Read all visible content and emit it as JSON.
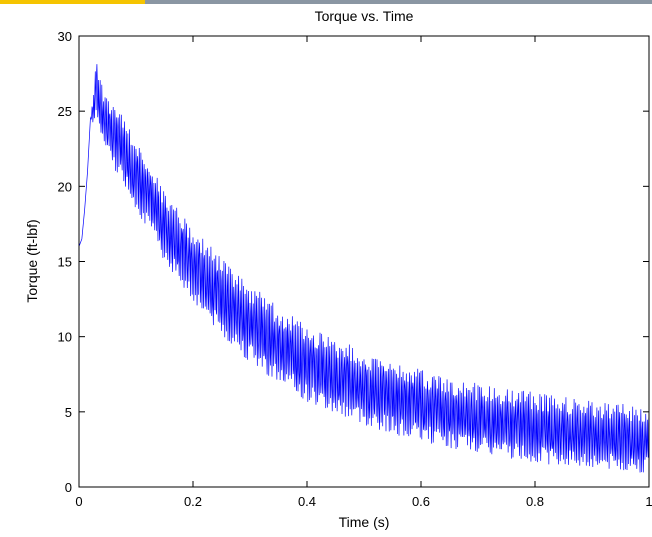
{
  "chart_data": {
    "type": "line",
    "title": "Torque vs. Time",
    "xlabel": "Time (s)",
    "ylabel": "Torque (ft-lbf)",
    "xlim": [
      0,
      1
    ],
    "ylim": [
      0,
      30
    ],
    "xticks": [
      0,
      0.2,
      0.4,
      0.6,
      0.8,
      1
    ],
    "xtick_labels": [
      "0",
      "0.2",
      "0.4",
      "0.6",
      "0.8",
      "1"
    ],
    "yticks": [
      0,
      5,
      10,
      15,
      20,
      25,
      30
    ],
    "ytick_labels": [
      "0",
      "5",
      "10",
      "15",
      "20",
      "25",
      "30"
    ],
    "grid": false,
    "series": [
      {
        "color": "#0000ff",
        "x": [
          0.0,
          0.005,
          0.01,
          0.015,
          0.02,
          0.025,
          0.03,
          0.035,
          0.04,
          0.05,
          0.06,
          0.08,
          0.1,
          0.15,
          0.2,
          0.25,
          0.3,
          0.35,
          0.4,
          0.45,
          0.5,
          0.55,
          0.6,
          0.65,
          0.7,
          0.75,
          0.8,
          0.85,
          0.9,
          0.95,
          1.0
        ],
        "upper": [
          16.0,
          16.5,
          18.5,
          21.0,
          24.5,
          26.0,
          28.7,
          27.5,
          26.8,
          26.0,
          25.5,
          24.5,
          23.0,
          19.8,
          17.3,
          15.2,
          13.5,
          12.0,
          10.8,
          9.9,
          9.1,
          8.4,
          7.8,
          7.3,
          6.9,
          6.6,
          6.3,
          6.0,
          5.8,
          5.6,
          5.4
        ],
        "lower": [
          16.0,
          16.5,
          18.5,
          21.0,
          24.5,
          24.0,
          25.0,
          23.5,
          23.0,
          22.0,
          21.3,
          20.0,
          18.5,
          15.0,
          12.3,
          10.0,
          8.3,
          6.9,
          5.6,
          4.8,
          4.1,
          3.5,
          3.0,
          2.6,
          2.2,
          1.9,
          1.6,
          1.4,
          1.2,
          1.0,
          0.9
        ]
      }
    ]
  }
}
